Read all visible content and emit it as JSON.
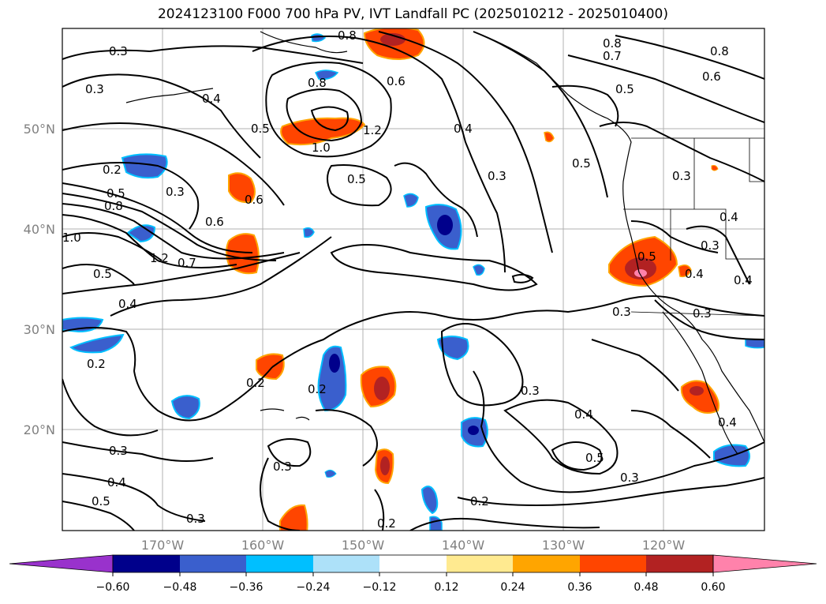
{
  "title": "2024123100 F000 700 hPa PV, IVT Landfall PC (2025010212 - 2025010400)",
  "lat_labels": [
    "50°N",
    "40°N",
    "30°N",
    "20°N"
  ],
  "lon_labels": [
    "170°W",
    "160°W",
    "150°W",
    "140°W",
    "130°W",
    "120°W"
  ],
  "colorbar": {
    "ticks": [
      "−0.60",
      "−0.48",
      "−0.36",
      "−0.24",
      "−0.12",
      "0.12",
      "0.24",
      "0.36",
      "0.48",
      "0.60"
    ],
    "colors": [
      "#9932CC",
      "#00008B",
      "#3A5FCD",
      "#00BFFF",
      "#ADE1F9",
      "#FFFFFF",
      "#FFEA90",
      "#FFA500",
      "#FF4500",
      "#B22222",
      "#FF82AB"
    ]
  },
  "contour_labels": [
    "0.3",
    "0.3",
    "0.4",
    "0.5",
    "0.2",
    "0.3",
    "0.5",
    "0.8",
    "1.0",
    "1.2",
    "0.5",
    "0.8",
    "1.0",
    "1.2",
    "0.6",
    "0.4",
    "0.3",
    "0.6",
    "0.8",
    "0.8",
    "0.7",
    "0.8",
    "0.6",
    "0.5",
    "0.5",
    "0.3",
    "0.6",
    "0.5",
    "0.7",
    "0.4",
    "0.2",
    "0.2",
    "0.2",
    "0.3",
    "0.4",
    "0.5",
    "0.3",
    "0.4",
    "0.5",
    "0.3",
    "0.2",
    "0.3",
    "0.3",
    "0.3",
    "0.4",
    "0.4",
    "0.3",
    "0.4",
    "0.5",
    "0.2",
    "0.4",
    "0.3"
  ]
}
